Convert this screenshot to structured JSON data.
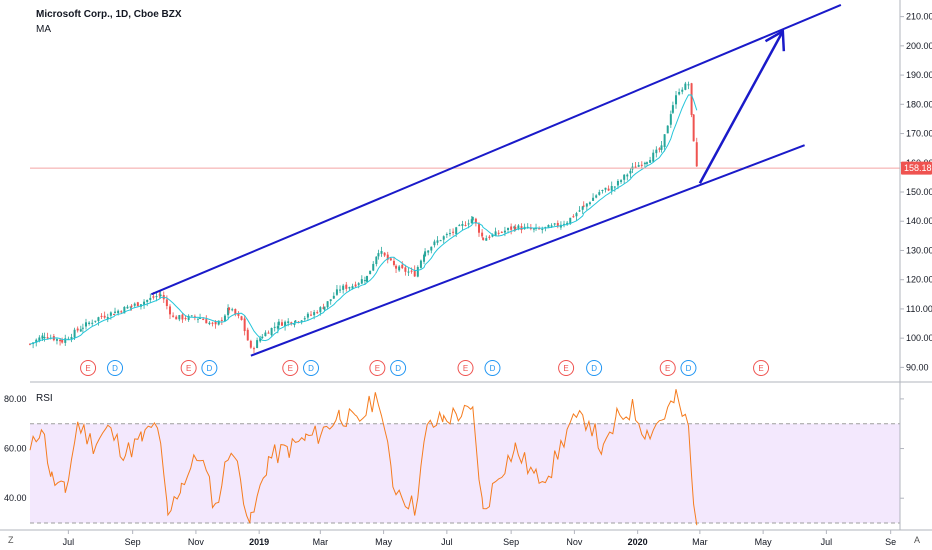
{
  "header": {
    "symbol_title": "Microsoft Corp., 1D, Cboe BZX",
    "indicator_ma": "MA",
    "indicator_rsi": "RSI"
  },
  "price_tag": "158.18",
  "corner_left": "Z",
  "corner_right": "A",
  "colors": {
    "up": "#26a69a",
    "down": "#ef5350",
    "ma": "#26c6da",
    "channel": "#1a1ac9",
    "rsi_line": "#f57c1f",
    "rsi_band": "#f3e8fd",
    "price_line": "#f4a4a4"
  },
  "event_markers": [
    {
      "label": "E",
      "date": "2018-07-20",
      "type": "earnings"
    },
    {
      "label": "D",
      "date": "2018-08-15",
      "type": "dividend"
    },
    {
      "label": "E",
      "date": "2018-10-25",
      "type": "earnings"
    },
    {
      "label": "D",
      "date": "2018-11-14",
      "type": "dividend"
    },
    {
      "label": "E",
      "date": "2019-01-31",
      "type": "earnings"
    },
    {
      "label": "D",
      "date": "2019-02-20",
      "type": "dividend"
    },
    {
      "label": "E",
      "date": "2019-04-25",
      "type": "earnings"
    },
    {
      "label": "D",
      "date": "2019-05-15",
      "type": "dividend"
    },
    {
      "label": "E",
      "date": "2019-07-19",
      "type": "earnings"
    },
    {
      "label": "D",
      "date": "2019-08-14",
      "type": "dividend"
    },
    {
      "label": "E",
      "date": "2019-10-24",
      "type": "earnings"
    },
    {
      "label": "D",
      "date": "2019-11-20",
      "type": "dividend"
    },
    {
      "label": "E",
      "date": "2020-01-30",
      "type": "earnings"
    },
    {
      "label": "D",
      "date": "2020-02-19",
      "type": "dividend"
    },
    {
      "label": "E",
      "date": "2020-04-29",
      "type": "earnings"
    }
  ],
  "chart_data": [
    {
      "type": "line",
      "subtype": "candlestick",
      "title": "Microsoft Corp., 1D, Cboe BZX",
      "x_ticks": [
        "Jul",
        "Sep",
        "Nov",
        "2019",
        "Mar",
        "May",
        "Jul",
        "Sep",
        "Nov",
        "2020",
        "Mar",
        "May",
        "Jul",
        "Se"
      ],
      "x_tick_dates": [
        "2018-07-01",
        "2018-09-01",
        "2018-11-01",
        "2019-01-01",
        "2019-03-01",
        "2019-05-01",
        "2019-07-01",
        "2019-09-01",
        "2019-11-01",
        "2020-01-01",
        "2020-03-01",
        "2020-05-01",
        "2020-07-01",
        "2020-09-01"
      ],
      "y_ticks": [
        "90.00",
        "100.00",
        "110.00",
        "120.00",
        "130.00",
        "140.00",
        "150.00",
        "160.00",
        "170.00",
        "180.00",
        "190.00",
        "200.00",
        "210.00"
      ],
      "ylim": [
        85,
        215
      ],
      "x_range": [
        "2018-05-25",
        "2020-09-10"
      ],
      "last_price": 158.18,
      "series": [
        {
          "name": "MA",
          "kind": "moving-average"
        }
      ],
      "price_path": [
        [
          "2018-05-25",
          98
        ],
        [
          "2018-06-08",
          101
        ],
        [
          "2018-06-25",
          99
        ],
        [
          "2018-07-15",
          104
        ],
        [
          "2018-07-30",
          107
        ],
        [
          "2018-08-15",
          109
        ],
        [
          "2018-08-31",
          111
        ],
        [
          "2018-09-15",
          113
        ],
        [
          "2018-09-28",
          115
        ],
        [
          "2018-10-10",
          107
        ],
        [
          "2018-10-25",
          107
        ],
        [
          "2018-11-05",
          107
        ],
        [
          "2018-11-20",
          104
        ],
        [
          "2018-12-03",
          110
        ],
        [
          "2018-12-15",
          106
        ],
        [
          "2018-12-24",
          96
        ],
        [
          "2019-01-04",
          101
        ],
        [
          "2019-01-20",
          105
        ],
        [
          "2019-02-05",
          106
        ],
        [
          "2019-02-20",
          108
        ],
        [
          "2019-03-05",
          111
        ],
        [
          "2019-03-20",
          117
        ],
        [
          "2019-04-01",
          118
        ],
        [
          "2019-04-15",
          121
        ],
        [
          "2019-04-26",
          130
        ],
        [
          "2019-05-13",
          124
        ],
        [
          "2019-05-31",
          122
        ],
        [
          "2019-06-10",
          130
        ],
        [
          "2019-06-25",
          134
        ],
        [
          "2019-07-10",
          137
        ],
        [
          "2019-07-26",
          141
        ],
        [
          "2019-08-05",
          134
        ],
        [
          "2019-08-20",
          136
        ],
        [
          "2019-09-05",
          138
        ],
        [
          "2019-09-25",
          137
        ],
        [
          "2019-10-10",
          138
        ],
        [
          "2019-10-25",
          140
        ],
        [
          "2019-11-10",
          145
        ],
        [
          "2019-11-25",
          150
        ],
        [
          "2019-12-10",
          152
        ],
        [
          "2019-12-27",
          158
        ],
        [
          "2020-01-10",
          161
        ],
        [
          "2020-01-24",
          165
        ],
        [
          "2020-02-04",
          180
        ],
        [
          "2020-02-10",
          185
        ],
        [
          "2020-02-19",
          187
        ],
        [
          "2020-02-24",
          168
        ],
        [
          "2020-02-27",
          158.18
        ]
      ],
      "channel_lines": [
        {
          "name": "upper",
          "from": [
            "2018-09-19",
            115
          ],
          "to": [
            "2020-07-15",
            214
          ]
        },
        {
          "name": "lower",
          "from": [
            "2018-12-24",
            94
          ],
          "to": [
            "2020-06-10",
            166
          ]
        }
      ],
      "projection_arrow": {
        "from": [
          "2020-03-01",
          153
        ],
        "to": [
          "2020-05-20",
          205
        ]
      },
      "grid": true
    },
    {
      "type": "line",
      "title": "RSI",
      "series": [
        {
          "name": "RSI"
        }
      ],
      "y_ticks": [
        "40.00",
        "60.00",
        "80.00"
      ],
      "ylim": [
        28,
        86
      ],
      "band": [
        30,
        70
      ],
      "rsi_path": [
        [
          "2018-05-25",
          58
        ],
        [
          "2018-06-05",
          70
        ],
        [
          "2018-06-15",
          48
        ],
        [
          "2018-06-28",
          42
        ],
        [
          "2018-07-10",
          70
        ],
        [
          "2018-07-25",
          62
        ],
        [
          "2018-08-08",
          68
        ],
        [
          "2018-08-25",
          58
        ],
        [
          "2018-09-10",
          64
        ],
        [
          "2018-09-25",
          70
        ],
        [
          "2018-10-05",
          32
        ],
        [
          "2018-10-18",
          46
        ],
        [
          "2018-11-05",
          58
        ],
        [
          "2018-11-20",
          36
        ],
        [
          "2018-12-05",
          62
        ],
        [
          "2018-12-24",
          30
        ],
        [
          "2019-01-10",
          56
        ],
        [
          "2019-01-30",
          60
        ],
        [
          "2019-02-15",
          64
        ],
        [
          "2019-03-01",
          66
        ],
        [
          "2019-03-20",
          74
        ],
        [
          "2019-04-05",
          70
        ],
        [
          "2019-04-26",
          82
        ],
        [
          "2019-05-10",
          46
        ],
        [
          "2019-05-31",
          36
        ],
        [
          "2019-06-12",
          68
        ],
        [
          "2019-06-28",
          72
        ],
        [
          "2019-07-12",
          74
        ],
        [
          "2019-07-26",
          74
        ],
        [
          "2019-08-05",
          34
        ],
        [
          "2019-08-20",
          50
        ],
        [
          "2019-09-05",
          60
        ],
        [
          "2019-09-25",
          48
        ],
        [
          "2019-10-10",
          52
        ],
        [
          "2019-10-28",
          70
        ],
        [
          "2019-11-15",
          72
        ],
        [
          "2019-11-29",
          58
        ],
        [
          "2019-12-12",
          72
        ],
        [
          "2019-12-27",
          76
        ],
        [
          "2020-01-10",
          66
        ],
        [
          "2020-01-24",
          72
        ],
        [
          "2020-02-07",
          80
        ],
        [
          "2020-02-19",
          68
        ],
        [
          "2020-02-24",
          36
        ],
        [
          "2020-02-27",
          33
        ]
      ]
    }
  ]
}
